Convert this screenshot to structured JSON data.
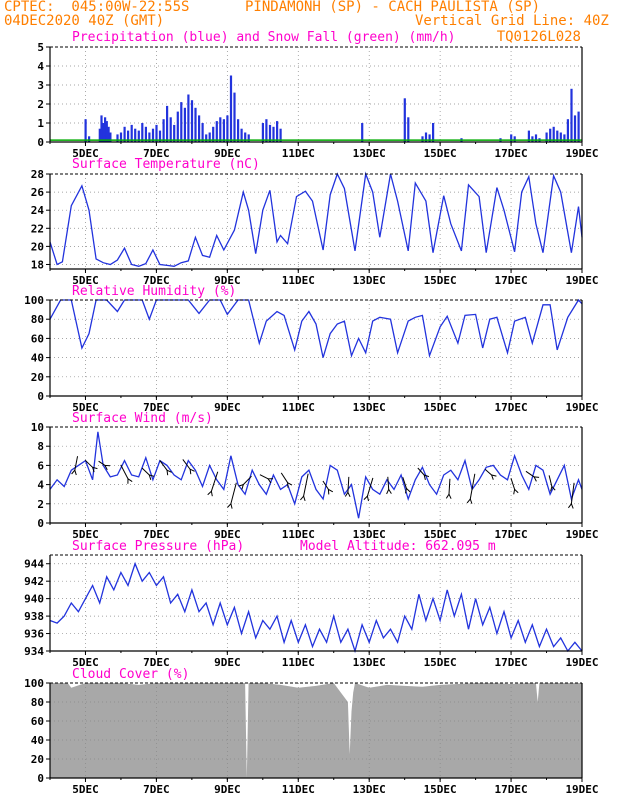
{
  "header": {
    "line1_left": "CPTEC:  045:00W-22:55S",
    "line1_right": "PINDAMONH (SP) - CACH PAULISTA (SP)",
    "line2_left": "04DEC2020 40Z (GMT)",
    "line2_right": "Vertical Grid Line: 40Z",
    "code": "TQ0126L028"
  },
  "colors": {
    "header": "#ff7f00",
    "title": "#ff00cc",
    "line": "#2233dd",
    "snow": "#00aa00",
    "cloud": "#a8a8a8"
  },
  "x_ticks": [
    "5DEC",
    "7DEC",
    "9DEC",
    "11DEC",
    "13DEC",
    "15DEC",
    "17DEC",
    "19DEC"
  ],
  "chart_data": [
    {
      "type": "bar",
      "title": "Precipitation (blue) and Snow Fall (green) (mm/h)",
      "ylim": [
        0,
        5
      ],
      "yticks": [
        "0",
        "1",
        "2",
        "3",
        "4",
        "5"
      ],
      "x_range_days": [
        4.0,
        19.0
      ],
      "series": [
        {
          "name": "Precipitation",
          "color": "#2233dd",
          "x": [
            5.0,
            5.1,
            5.4,
            5.45,
            5.5,
            5.55,
            5.6,
            5.65,
            5.7,
            5.9,
            6.0,
            6.1,
            6.2,
            6.3,
            6.4,
            6.5,
            6.6,
            6.7,
            6.8,
            6.9,
            7.0,
            7.1,
            7.2,
            7.3,
            7.4,
            7.5,
            7.6,
            7.7,
            7.8,
            7.9,
            8.0,
            8.1,
            8.2,
            8.3,
            8.4,
            8.5,
            8.6,
            8.7,
            8.8,
            8.9,
            9.0,
            9.1,
            9.2,
            9.3,
            9.4,
            9.5,
            9.6,
            10.0,
            10.1,
            10.2,
            10.3,
            10.4,
            10.5,
            12.8,
            14.0,
            14.1,
            14.5,
            14.6,
            14.7,
            14.8,
            15.6,
            16.7,
            17.0,
            17.1,
            17.5,
            17.6,
            17.7,
            17.8,
            18.0,
            18.1,
            18.2,
            18.3,
            18.4,
            18.5,
            18.6,
            18.7,
            18.8,
            18.9
          ],
          "values": [
            1.2,
            0.3,
            0.7,
            1.4,
            1.0,
            1.3,
            1.1,
            0.8,
            0.5,
            0.4,
            0.5,
            0.8,
            0.6,
            0.9,
            0.7,
            0.6,
            1.0,
            0.8,
            0.5,
            0.7,
            0.9,
            0.6,
            1.2,
            1.9,
            1.3,
            0.9,
            1.6,
            2.1,
            1.8,
            2.5,
            2.2,
            1.8,
            1.4,
            1.0,
            0.4,
            0.5,
            0.8,
            1.1,
            1.3,
            1.2,
            1.4,
            3.5,
            2.6,
            1.2,
            0.7,
            0.5,
            0.4,
            1.0,
            1.2,
            0.9,
            0.8,
            1.1,
            0.7,
            1.0,
            2.3,
            1.3,
            0.3,
            0.5,
            0.4,
            1.0,
            0.2,
            0.2,
            0.4,
            0.3,
            0.6,
            0.3,
            0.4,
            0.2,
            0.5,
            0.7,
            0.8,
            0.6,
            0.5,
            0.4,
            1.2,
            2.8,
            1.4,
            1.6
          ]
        },
        {
          "name": "Snow Fall",
          "color": "#00aa00",
          "x": [
            4.0,
            19.0
          ],
          "values": [
            0.1,
            0.1
          ]
        }
      ]
    },
    {
      "type": "line",
      "title": "Surface Temperature (nC)",
      "ylim": [
        17.5,
        28
      ],
      "yticks": [
        "18",
        "20",
        "22",
        "24",
        "26",
        "28"
      ],
      "x": [
        4.0,
        4.2,
        4.35,
        4.6,
        4.9,
        5.1,
        5.3,
        5.5,
        5.7,
        5.9,
        6.1,
        6.3,
        6.5,
        6.7,
        6.9,
        7.1,
        7.3,
        7.5,
        7.7,
        7.9,
        8.1,
        8.3,
        8.5,
        8.7,
        8.9,
        9.2,
        9.45,
        9.6,
        9.8,
        10.0,
        10.2,
        10.4,
        10.5,
        10.7,
        10.95,
        11.2,
        11.4,
        11.7,
        11.9,
        12.1,
        12.3,
        12.6,
        12.9,
        13.1,
        13.3,
        13.6,
        13.8,
        14.1,
        14.3,
        14.6,
        14.8,
        15.1,
        15.3,
        15.6,
        15.8,
        16.1,
        16.3,
        16.6,
        16.8,
        17.1,
        17.3,
        17.5,
        17.7,
        17.9,
        18.2,
        18.4,
        18.7,
        18.9,
        19.0
      ],
      "values": [
        20.5,
        18.0,
        18.3,
        24.5,
        26.7,
        24.0,
        18.6,
        18.2,
        18.0,
        18.5,
        19.8,
        18.0,
        17.8,
        18.1,
        19.6,
        18.0,
        17.9,
        17.8,
        18.2,
        18.4,
        21.0,
        19.0,
        18.8,
        21.2,
        19.6,
        21.8,
        26.0,
        24.0,
        19.2,
        24.0,
        26.2,
        20.5,
        21.2,
        20.3,
        25.5,
        26.1,
        25.0,
        19.6,
        25.7,
        28.0,
        26.4,
        19.5,
        28.0,
        26.0,
        21.0,
        28.0,
        25.0,
        19.5,
        27.0,
        25.0,
        19.3,
        25.6,
        22.5,
        19.5,
        26.8,
        25.5,
        19.3,
        26.5,
        24.0,
        19.4,
        26.0,
        27.7,
        22.5,
        19.3,
        27.8,
        26.0,
        19.3,
        24.4,
        21.0
      ]
    },
    {
      "type": "line",
      "title": "Relative Humidity (%)",
      "ylim": [
        0,
        100
      ],
      "yticks": [
        "0",
        "20",
        "40",
        "60",
        "80",
        "100"
      ],
      "x": [
        4.0,
        4.3,
        4.6,
        4.9,
        5.1,
        5.3,
        5.6,
        5.9,
        6.1,
        6.3,
        6.6,
        6.8,
        7.0,
        7.3,
        7.6,
        7.9,
        8.2,
        8.5,
        8.8,
        9.0,
        9.3,
        9.6,
        9.9,
        10.1,
        10.4,
        10.6,
        10.9,
        11.1,
        11.3,
        11.5,
        11.7,
        11.9,
        12.1,
        12.3,
        12.5,
        12.7,
        12.9,
        13.1,
        13.3,
        13.6,
        13.8,
        14.1,
        14.3,
        14.5,
        14.7,
        15.0,
        15.2,
        15.5,
        15.7,
        16.0,
        16.2,
        16.4,
        16.6,
        16.9,
        17.1,
        17.4,
        17.6,
        17.9,
        18.1,
        18.3,
        18.6,
        18.9,
        19.0
      ],
      "values": [
        80,
        100,
        100,
        50,
        65,
        100,
        100,
        88,
        100,
        100,
        100,
        80,
        100,
        100,
        100,
        100,
        86,
        100,
        100,
        85,
        100,
        100,
        55,
        78,
        88,
        84,
        48,
        78,
        88,
        75,
        40,
        65,
        75,
        78,
        42,
        60,
        45,
        78,
        82,
        80,
        45,
        78,
        82,
        84,
        42,
        72,
        83,
        55,
        84,
        85,
        50,
        80,
        82,
        45,
        78,
        82,
        55,
        95,
        95,
        48,
        82,
        100,
        96
      ]
    },
    {
      "type": "line",
      "title": "Surface Wind (m/s)",
      "ylim": [
        0,
        10
      ],
      "yticks": [
        "0",
        "2",
        "4",
        "6",
        "8",
        "10"
      ],
      "x": [
        4.0,
        4.2,
        4.4,
        4.6,
        4.8,
        5.0,
        5.2,
        5.35,
        5.5,
        5.7,
        5.9,
        6.1,
        6.3,
        6.5,
        6.7,
        6.9,
        7.1,
        7.3,
        7.5,
        7.7,
        7.9,
        8.1,
        8.3,
        8.5,
        8.7,
        8.9,
        9.1,
        9.3,
        9.5,
        9.7,
        9.9,
        10.1,
        10.3,
        10.5,
        10.7,
        10.9,
        11.1,
        11.3,
        11.5,
        11.7,
        11.9,
        12.1,
        12.3,
        12.5,
        12.7,
        12.9,
        13.1,
        13.3,
        13.5,
        13.7,
        13.9,
        14.1,
        14.3,
        14.5,
        14.7,
        14.9,
        15.1,
        15.3,
        15.5,
        15.7,
        15.9,
        16.1,
        16.3,
        16.5,
        16.7,
        16.9,
        17.1,
        17.3,
        17.5,
        17.7,
        17.9,
        18.1,
        18.3,
        18.5,
        18.7,
        18.9,
        19.0
      ],
      "values": [
        3.5,
        4.5,
        3.8,
        5.5,
        6.0,
        6.5,
        4.5,
        9.5,
        6.0,
        4.8,
        5.0,
        6.5,
        5.0,
        4.8,
        6.8,
        4.5,
        6.5,
        6.0,
        5.0,
        4.5,
        6.5,
        5.5,
        3.8,
        6.0,
        4.5,
        3.5,
        7.0,
        4.0,
        3.0,
        5.5,
        4.0,
        3.0,
        5.0,
        3.5,
        4.0,
        2.0,
        4.8,
        5.5,
        3.5,
        2.5,
        6.0,
        5.5,
        3.0,
        4.0,
        0.5,
        4.8,
        3.5,
        3.0,
        4.5,
        3.5,
        5.0,
        2.5,
        4.5,
        5.8,
        4.0,
        3.0,
        5.0,
        5.5,
        4.5,
        6.5,
        3.5,
        4.5,
        5.8,
        6.0,
        5.0,
        4.5,
        7.0,
        5.0,
        3.5,
        6.0,
        5.5,
        3.0,
        4.5,
        6.0,
        2.5,
        4.5,
        3.5
      ],
      "arrows": [
        {
          "x": 4.7,
          "y": 5.5,
          "dx": 0.15,
          "dy": 1.0
        },
        {
          "x": 5.2,
          "y": 5.8,
          "dx": -0.4,
          "dy": 0.5
        },
        {
          "x": 5.55,
          "y": 6.0,
          "dx": -0.35,
          "dy": 0.3
        },
        {
          "x": 6.2,
          "y": 4.6,
          "dx": -0.4,
          "dy": 1.0
        },
        {
          "x": 6.8,
          "y": 5.0,
          "dx": -0.4,
          "dy": 0.5
        },
        {
          "x": 7.3,
          "y": 5.5,
          "dx": -0.4,
          "dy": 0.7
        },
        {
          "x": 7.95,
          "y": 5.6,
          "dx": -0.4,
          "dy": 0.7
        },
        {
          "x": 8.55,
          "y": 3.3,
          "dx": 0.35,
          "dy": 1.4
        },
        {
          "x": 9.1,
          "y": 2.0,
          "dx": 0.3,
          "dy": 1.5
        },
        {
          "x": 9.45,
          "y": 4.0,
          "dx": 0.45,
          "dy": 0.6
        },
        {
          "x": 10.15,
          "y": 4.6,
          "dx": -0.45,
          "dy": 0.3
        },
        {
          "x": 10.7,
          "y": 4.2,
          "dx": -0.35,
          "dy": 0.7
        },
        {
          "x": 11.15,
          "y": 2.8,
          "dx": 0.25,
          "dy": 1.6
        },
        {
          "x": 11.85,
          "y": 3.5,
          "dx": -0.3,
          "dy": 0.6
        },
        {
          "x": 12.4,
          "y": 3.2,
          "dx": 0.05,
          "dy": 1.1
        },
        {
          "x": 12.95,
          "y": 2.8,
          "dx": 0.3,
          "dy": 1.3
        },
        {
          "x": 13.55,
          "y": 3.5,
          "dx": -0.05,
          "dy": 0.9
        },
        {
          "x": 14.05,
          "y": 3.6,
          "dx": -0.2,
          "dy": 0.8
        },
        {
          "x": 14.55,
          "y": 5.0,
          "dx": -0.35,
          "dy": 0.5
        },
        {
          "x": 15.25,
          "y": 3.0,
          "dx": 0.05,
          "dy": 1.1
        },
        {
          "x": 15.85,
          "y": 2.5,
          "dx": 0.25,
          "dy": 1.8
        },
        {
          "x": 16.45,
          "y": 5.0,
          "dx": -0.35,
          "dy": 0.4
        },
        {
          "x": 17.1,
          "y": 3.5,
          "dx": -0.2,
          "dy": 0.8
        },
        {
          "x": 17.65,
          "y": 4.8,
          "dx": -0.45,
          "dy": 0.4
        },
        {
          "x": 18.15,
          "y": 3.8,
          "dx": -0.15,
          "dy": 0.8
        },
        {
          "x": 18.7,
          "y": 2.0,
          "dx": 0.15,
          "dy": 1.5
        }
      ]
    },
    {
      "type": "line",
      "title": "Surface Pressure (hPa)",
      "annotation": "Model Altitude: 662.095 m",
      "ylim": [
        934,
        945
      ],
      "yticks": [
        "934",
        "936",
        "938",
        "940",
        "942",
        "944"
      ],
      "x": [
        4.0,
        4.2,
        4.4,
        4.6,
        4.8,
        5.0,
        5.2,
        5.4,
        5.6,
        5.8,
        6.0,
        6.2,
        6.4,
        6.6,
        6.8,
        7.0,
        7.2,
        7.4,
        7.6,
        7.8,
        8.0,
        8.2,
        8.4,
        8.6,
        8.8,
        9.0,
        9.2,
        9.4,
        9.6,
        9.8,
        10.0,
        10.2,
        10.4,
        10.6,
        10.8,
        11.0,
        11.2,
        11.4,
        11.6,
        11.8,
        12.0,
        12.2,
        12.4,
        12.6,
        12.8,
        13.0,
        13.2,
        13.4,
        13.6,
        13.8,
        14.0,
        14.2,
        14.4,
        14.6,
        14.8,
        15.0,
        15.2,
        15.4,
        15.6,
        15.8,
        16.0,
        16.2,
        16.4,
        16.6,
        16.8,
        17.0,
        17.2,
        17.4,
        17.6,
        17.8,
        18.0,
        18.2,
        18.4,
        18.6,
        18.8,
        19.0
      ],
      "values": [
        937.5,
        937.2,
        938.0,
        939.5,
        938.5,
        940.0,
        941.5,
        939.5,
        942.5,
        941.0,
        943.0,
        941.5,
        944.0,
        942.0,
        943.0,
        941.5,
        942.5,
        939.5,
        940.5,
        938.5,
        941.0,
        938.5,
        939.5,
        937.0,
        939.5,
        937.0,
        939.0,
        936.0,
        938.5,
        935.5,
        937.5,
        936.5,
        938.0,
        935.0,
        937.5,
        935.0,
        937.0,
        934.5,
        936.5,
        935.0,
        938.0,
        935.0,
        936.5,
        934.0,
        937.0,
        935.0,
        937.5,
        935.5,
        936.5,
        935.0,
        938.0,
        936.5,
        940.5,
        937.5,
        940.0,
        937.5,
        941.0,
        938.0,
        940.5,
        936.5,
        940.0,
        937.0,
        939.0,
        936.0,
        938.5,
        935.5,
        937.5,
        935.0,
        937.0,
        934.5,
        936.5,
        934.5,
        935.5,
        934.0,
        935.0,
        934.0
      ]
    },
    {
      "type": "area",
      "title": "Cloud Cover (%)",
      "ylim": [
        0,
        100
      ],
      "yticks": [
        "0",
        "20",
        "40",
        "60",
        "80",
        "100"
      ],
      "x": [
        4.0,
        4.5,
        4.6,
        5.0,
        5.5,
        6.0,
        6.5,
        7.0,
        7.5,
        8.0,
        8.5,
        9.0,
        9.5,
        9.55,
        9.6,
        10.0,
        10.5,
        11.0,
        11.5,
        12.0,
        12.4,
        12.45,
        12.5,
        12.55,
        12.6,
        13.0,
        13.5,
        14.0,
        14.5,
        15.0,
        15.5,
        16.0,
        16.5,
        17.0,
        17.5,
        17.7,
        17.75,
        17.8,
        18.0,
        18.5,
        19.0
      ],
      "values": [
        100,
        100,
        95,
        100,
        100,
        100,
        98,
        100,
        100,
        100,
        100,
        100,
        100,
        0,
        100,
        100,
        98,
        95,
        97,
        100,
        80,
        25,
        70,
        90,
        100,
        95,
        98,
        97,
        96,
        98,
        99,
        100,
        100,
        99,
        100,
        100,
        80,
        100,
        100,
        100,
        100
      ]
    }
  ]
}
